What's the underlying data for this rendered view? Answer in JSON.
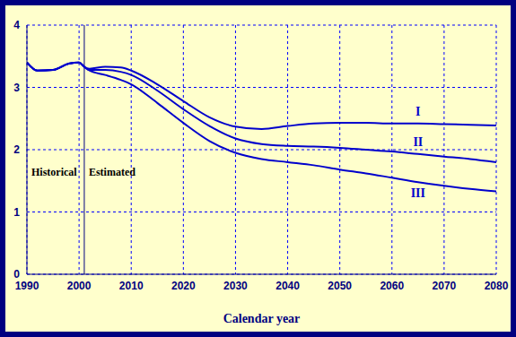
{
  "chart_data": {
    "type": "line",
    "x_label": "Calendar year",
    "x": [
      1990,
      1992,
      1995,
      1998,
      2000,
      2001,
      2002,
      2005,
      2008,
      2010,
      2015,
      2020,
      2025,
      2030,
      2035,
      2040,
      2045,
      2050,
      2055,
      2060,
      2065,
      2070,
      2075,
      2080
    ],
    "series": [
      {
        "name": "I",
        "color": "#0000cc",
        "values": [
          3.4,
          3.27,
          3.28,
          3.38,
          3.4,
          3.33,
          3.3,
          3.33,
          3.32,
          3.27,
          3.05,
          2.78,
          2.52,
          2.37,
          2.33,
          2.38,
          2.42,
          2.43,
          2.43,
          2.42,
          2.42,
          2.41,
          2.4,
          2.39
        ]
      },
      {
        "name": "II",
        "color": "#0000cc",
        "values": [
          3.4,
          3.27,
          3.28,
          3.38,
          3.4,
          3.33,
          3.28,
          3.28,
          3.25,
          3.2,
          2.95,
          2.65,
          2.38,
          2.18,
          2.09,
          2.06,
          2.05,
          2.03,
          2.0,
          1.97,
          1.93,
          1.89,
          1.85,
          1.8
        ]
      },
      {
        "name": "III",
        "color": "#0000cc",
        "values": [
          3.4,
          3.27,
          3.28,
          3.38,
          3.4,
          3.33,
          3.27,
          3.2,
          3.12,
          3.05,
          2.75,
          2.43,
          2.14,
          1.95,
          1.85,
          1.8,
          1.75,
          1.68,
          1.62,
          1.55,
          1.48,
          1.42,
          1.37,
          1.33
        ]
      }
    ],
    "xlim": [
      1990,
      2080
    ],
    "xticks": [
      1990,
      2000,
      2010,
      2020,
      2030,
      2040,
      2050,
      2060,
      2070,
      2080
    ],
    "ylim": [
      0,
      4
    ],
    "yticks": [
      0,
      1,
      2,
      3,
      4
    ],
    "grid": true,
    "divider": 2001,
    "annotations": [
      {
        "text": "Historical",
        "x": 1990,
        "y": 1.65
      },
      {
        "text": "Estimated",
        "x": 2001,
        "y": 1.65
      }
    ]
  }
}
